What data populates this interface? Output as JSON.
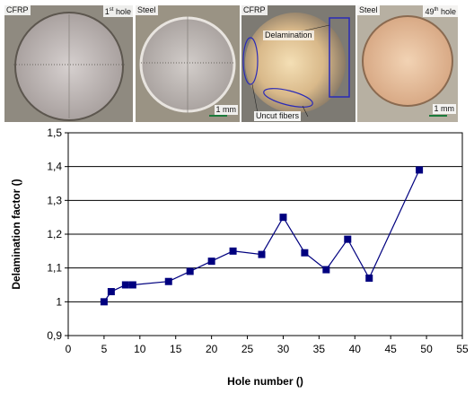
{
  "photos": [
    {
      "material": "CFRP",
      "hole_num": "1",
      "hole_sup": "st",
      "hole_word": "hole"
    },
    {
      "material": "Steel",
      "scale": "1 mm"
    },
    {
      "material": "CFRP",
      "delamination": "Delamination",
      "uncut": "Uncut fibers"
    },
    {
      "material": "Steel",
      "hole_num": "49",
      "hole_sup": "th",
      "hole_word": "hole",
      "scale": "1 mm"
    }
  ],
  "chart_data": {
    "type": "line",
    "xlabel": "Hole number ()",
    "ylabel": "Delamination factor ()",
    "xlim": [
      0,
      55
    ],
    "ylim": [
      0.9,
      1.5
    ],
    "xticks": [
      0,
      5,
      10,
      15,
      20,
      25,
      30,
      35,
      40,
      45,
      50,
      55
    ],
    "yticks": [
      "0,9",
      "1",
      "1,1",
      "1,2",
      "1,3",
      "1,4",
      "1,5"
    ],
    "grid": "horizontal",
    "series_color": "#00007f",
    "x": [
      5,
      6,
      8,
      9,
      14,
      17,
      20,
      23,
      27,
      30,
      33,
      36,
      39,
      42,
      49
    ],
    "y": [
      1.0,
      1.03,
      1.05,
      1.05,
      1.06,
      1.09,
      1.12,
      1.15,
      1.14,
      1.25,
      1.145,
      1.095,
      1.185,
      1.07,
      1.39
    ]
  }
}
